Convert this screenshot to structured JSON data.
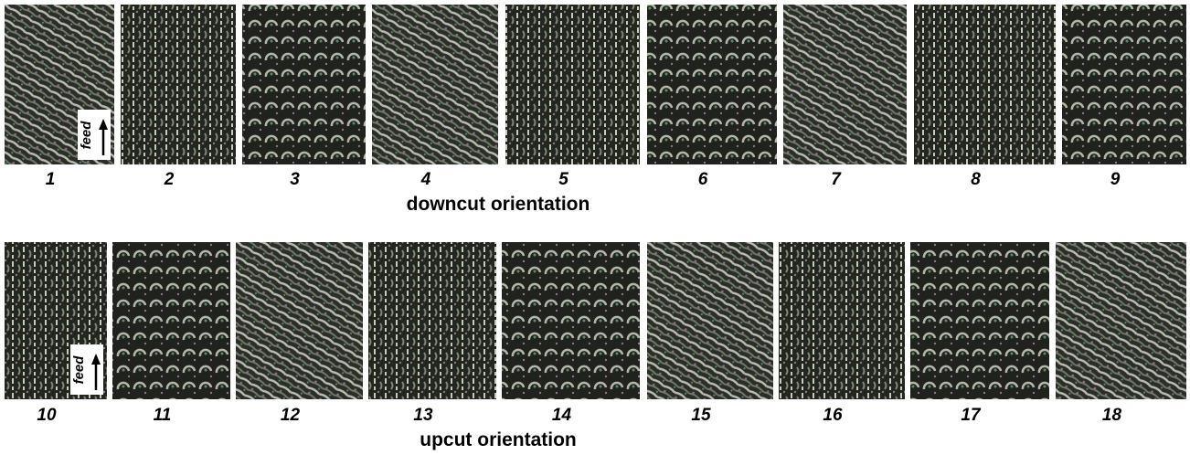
{
  "rows": [
    {
      "panels": [
        "1",
        "2",
        "3",
        "4",
        "5",
        "6",
        "7",
        "8",
        "9"
      ],
      "caption": "downcut orientation",
      "feed": "feed"
    },
    {
      "panels": [
        "10",
        "11",
        "12",
        "13",
        "14",
        "15",
        "16",
        "17",
        "18"
      ],
      "caption": "upcut orientation",
      "feed": "feed"
    }
  ]
}
